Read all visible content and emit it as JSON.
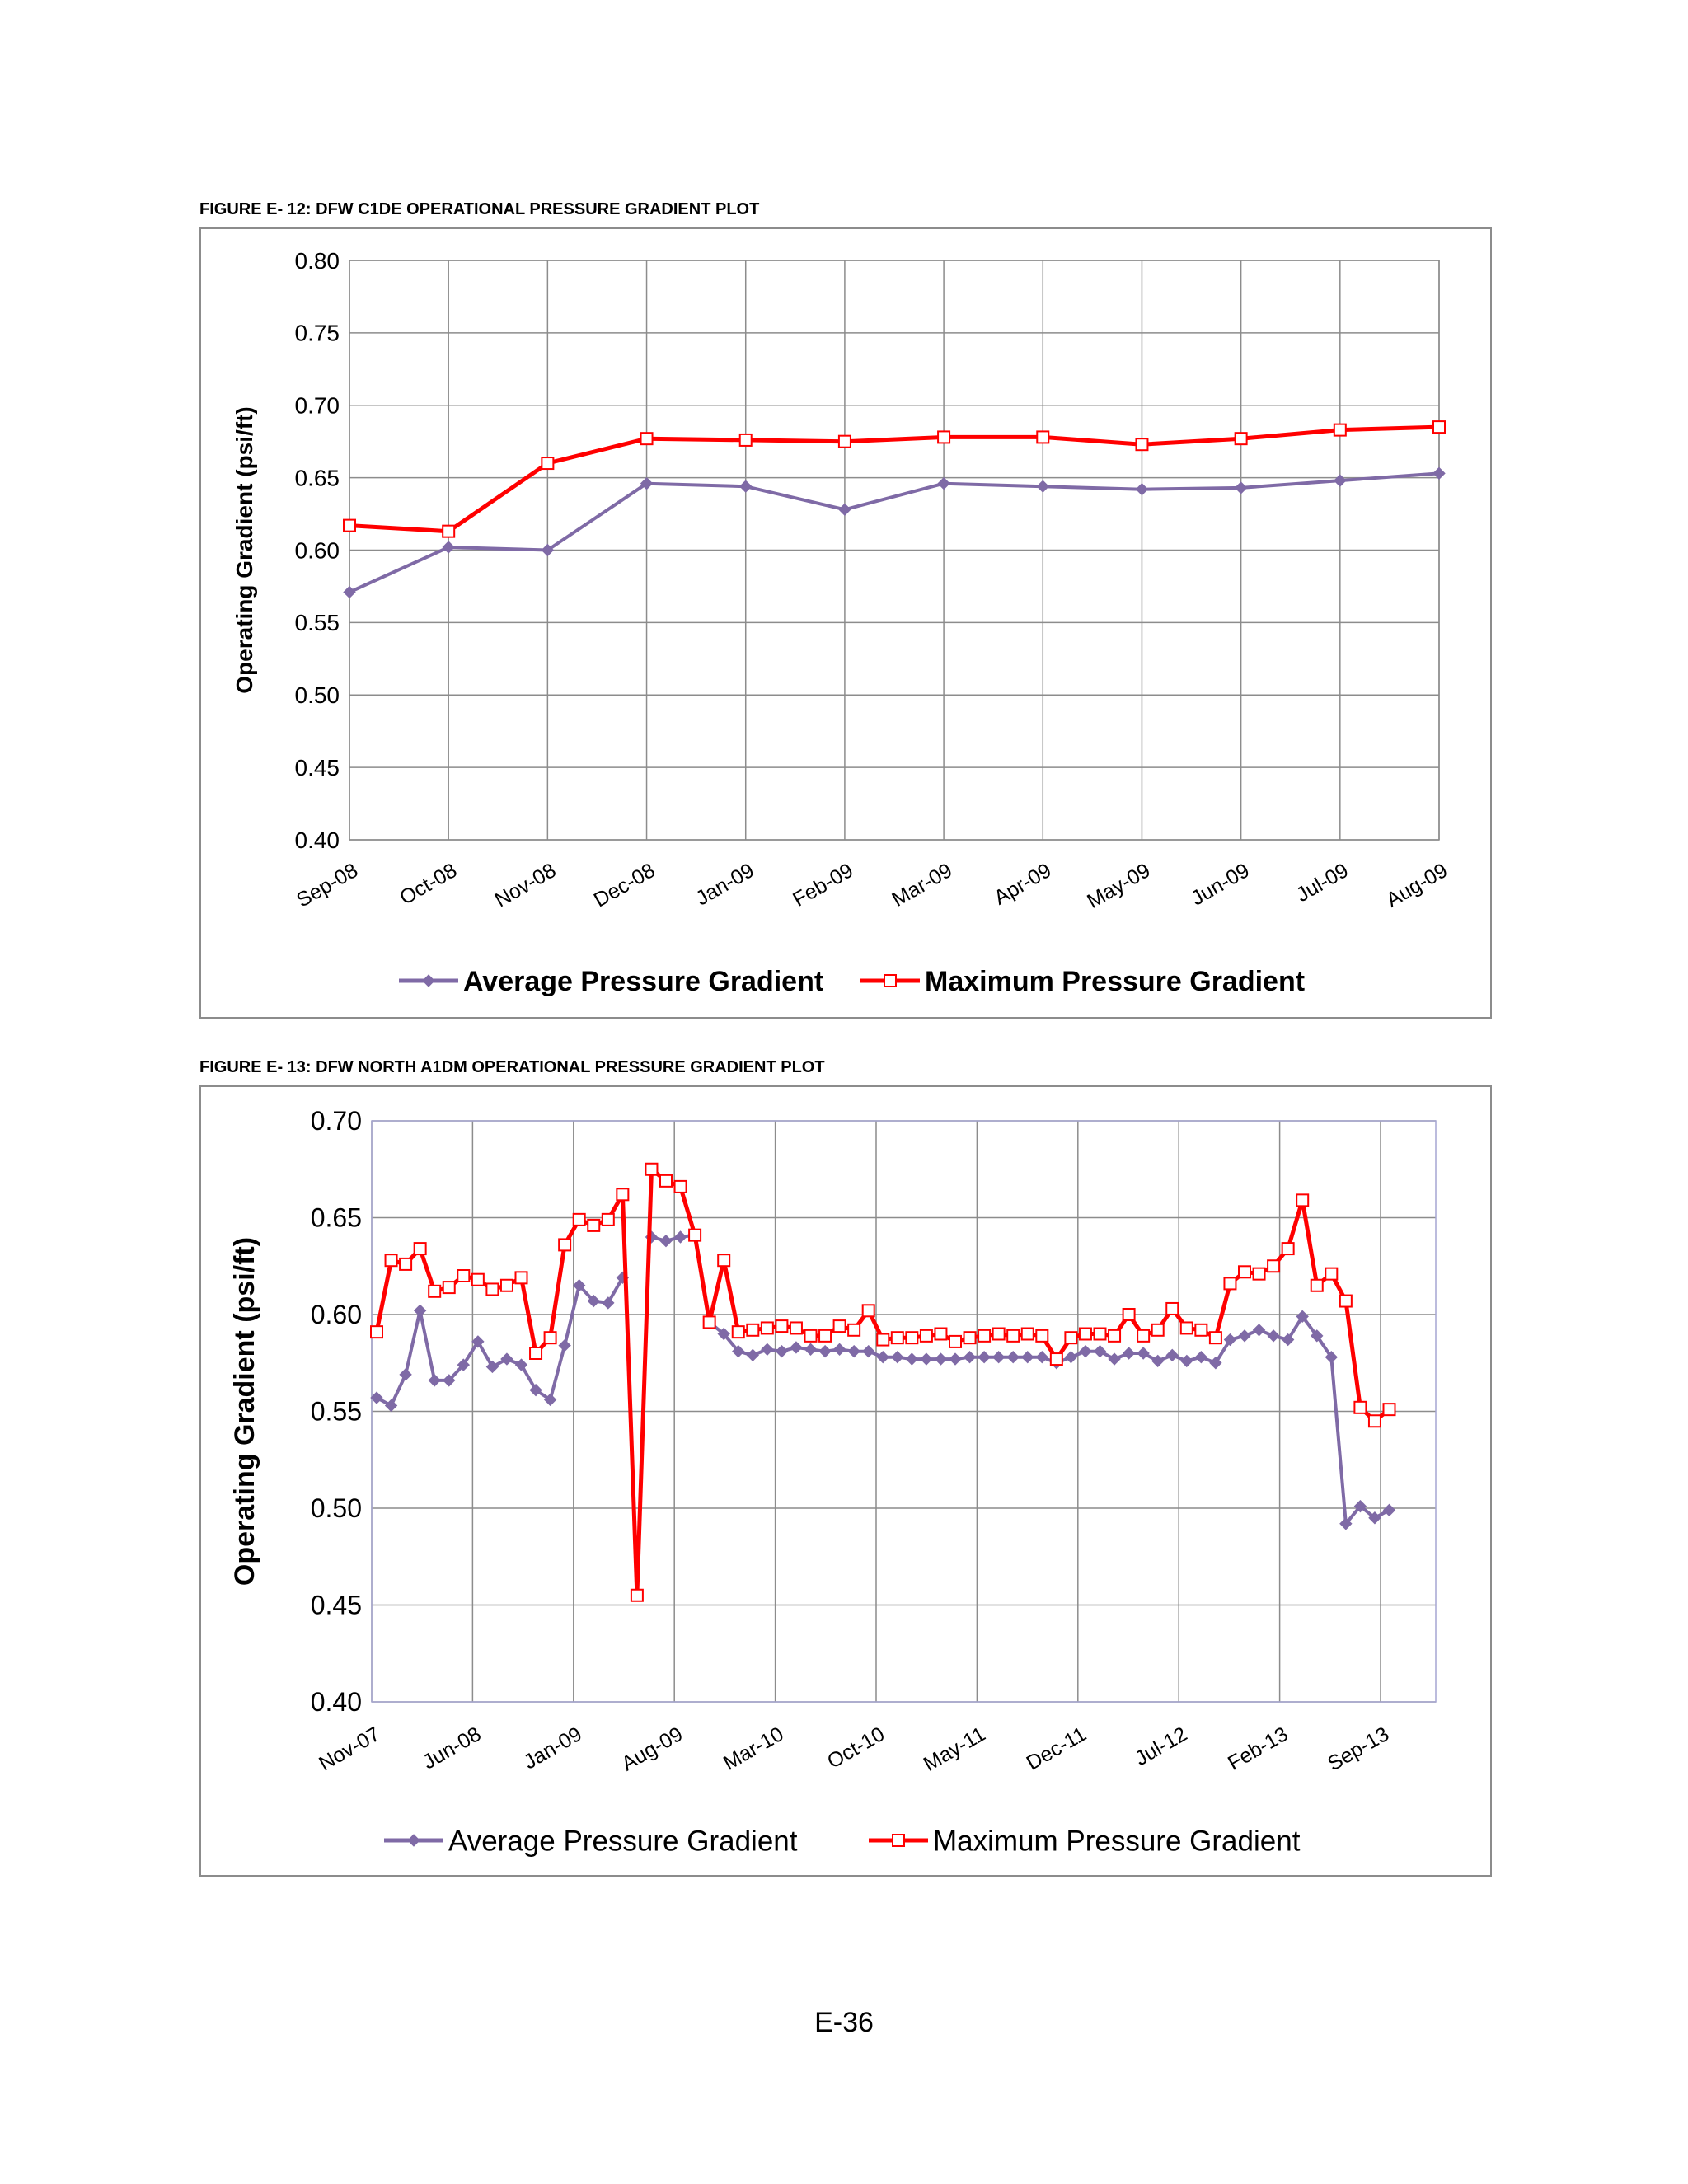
{
  "figure1": {
    "caption": "FIGURE E- 12:  DFW C1DE OPERATIONAL PRESSURE GRADIENT PLOT",
    "chart_data": {
      "type": "line",
      "title": "",
      "xlabel": "",
      "ylabel": "Operating Gradient (psi/ft)",
      "ylim": [
        0.4,
        0.8
      ],
      "yticks": [
        "0.80",
        "0.75",
        "0.70",
        "0.65",
        "0.60",
        "0.55",
        "0.50",
        "0.45",
        "0.40"
      ],
      "categories": [
        "Sep-08",
        "Oct-08",
        "Nov-08",
        "Dec-08",
        "Jan-09",
        "Feb-09",
        "Mar-09",
        "Apr-09",
        "May-09",
        "Jun-09",
        "Jul-09",
        "Aug-09"
      ],
      "grid": true,
      "legend": "bottom",
      "series": [
        {
          "name": "Average Pressure Gradient",
          "color": "#7f6aa6",
          "marker": "diamond",
          "values": [
            0.571,
            0.602,
            0.6,
            0.646,
            0.644,
            0.628,
            0.646,
            0.644,
            0.642,
            0.643,
            0.648,
            0.653
          ]
        },
        {
          "name": "Maximum Pressure Gradient",
          "color": "#ff0000",
          "marker": "square",
          "values": [
            0.617,
            0.613,
            0.66,
            0.677,
            0.676,
            0.675,
            0.678,
            0.678,
            0.673,
            0.677,
            0.683,
            0.685
          ]
        }
      ]
    }
  },
  "figure2": {
    "caption": "FIGURE E- 13:  DFW NORTH A1DM OPERATIONAL PRESSURE GRADIENT PLOT",
    "chart_data": {
      "type": "line",
      "title": "",
      "xlabel": "",
      "ylabel": "Operating Gradient (psi/ft)",
      "ylim": [
        0.4,
        0.7
      ],
      "yticks": [
        "0.70",
        "0.65",
        "0.60",
        "0.55",
        "0.50",
        "0.45",
        "0.40"
      ],
      "x_start": "Nov-07",
      "xtick_labels": [
        "Nov-07",
        "Jun-08",
        "Jan-09",
        "Aug-09",
        "Mar-10",
        "Oct-10",
        "May-11",
        "Dec-11",
        "Jul-12",
        "Feb-13",
        "Sep-13"
      ],
      "grid": true,
      "legend": "bottom",
      "series": [
        {
          "name": "Average Pressure Gradient",
          "color": "#7f6aa6",
          "marker": "diamond",
          "values": [
            0.557,
            0.553,
            0.569,
            0.602,
            0.566,
            0.566,
            0.574,
            0.586,
            0.573,
            0.577,
            0.574,
            0.561,
            0.556,
            0.584,
            0.615,
            0.607,
            0.606,
            0.619,
            null,
            0.64,
            0.638,
            0.64,
            0.641,
            0.596,
            0.59,
            0.581,
            0.579,
            0.582,
            0.581,
            0.583,
            0.582,
            0.581,
            0.582,
            0.581,
            0.581,
            0.578,
            0.578,
            0.577,
            0.577,
            0.577,
            0.577,
            0.578,
            0.578,
            0.578,
            0.578,
            0.578,
            0.578,
            0.575,
            0.578,
            0.581,
            0.581,
            0.577,
            0.58,
            0.58,
            0.576,
            0.579,
            0.576,
            0.578,
            0.575,
            0.587,
            0.589,
            0.592,
            0.589,
            0.587,
            0.599,
            0.589,
            0.578,
            0.492,
            0.501,
            0.495,
            0.499
          ]
        },
        {
          "name": "Maximum Pressure Gradient",
          "color": "#ff0000",
          "marker": "square",
          "values": [
            0.591,
            0.628,
            0.626,
            0.634,
            0.612,
            0.614,
            0.62,
            0.618,
            0.613,
            0.615,
            0.619,
            0.58,
            0.588,
            0.636,
            0.649,
            0.646,
            0.649,
            0.662,
            0.455,
            0.675,
            0.669,
            0.666,
            0.641,
            0.596,
            0.628,
            0.591,
            0.592,
            0.593,
            0.594,
            0.593,
            0.589,
            0.589,
            0.594,
            0.592,
            0.602,
            0.587,
            0.588,
            0.588,
            0.589,
            0.59,
            0.586,
            0.588,
            0.589,
            0.59,
            0.589,
            0.59,
            0.589,
            0.577,
            0.588,
            0.59,
            0.59,
            0.589,
            0.6,
            0.589,
            0.592,
            0.603,
            0.593,
            0.592,
            0.588,
            0.616,
            0.622,
            0.621,
            0.625,
            0.634,
            0.659,
            0.615,
            0.621,
            0.607,
            0.552,
            0.545,
            0.551
          ]
        }
      ]
    }
  },
  "page_number": "E-36"
}
